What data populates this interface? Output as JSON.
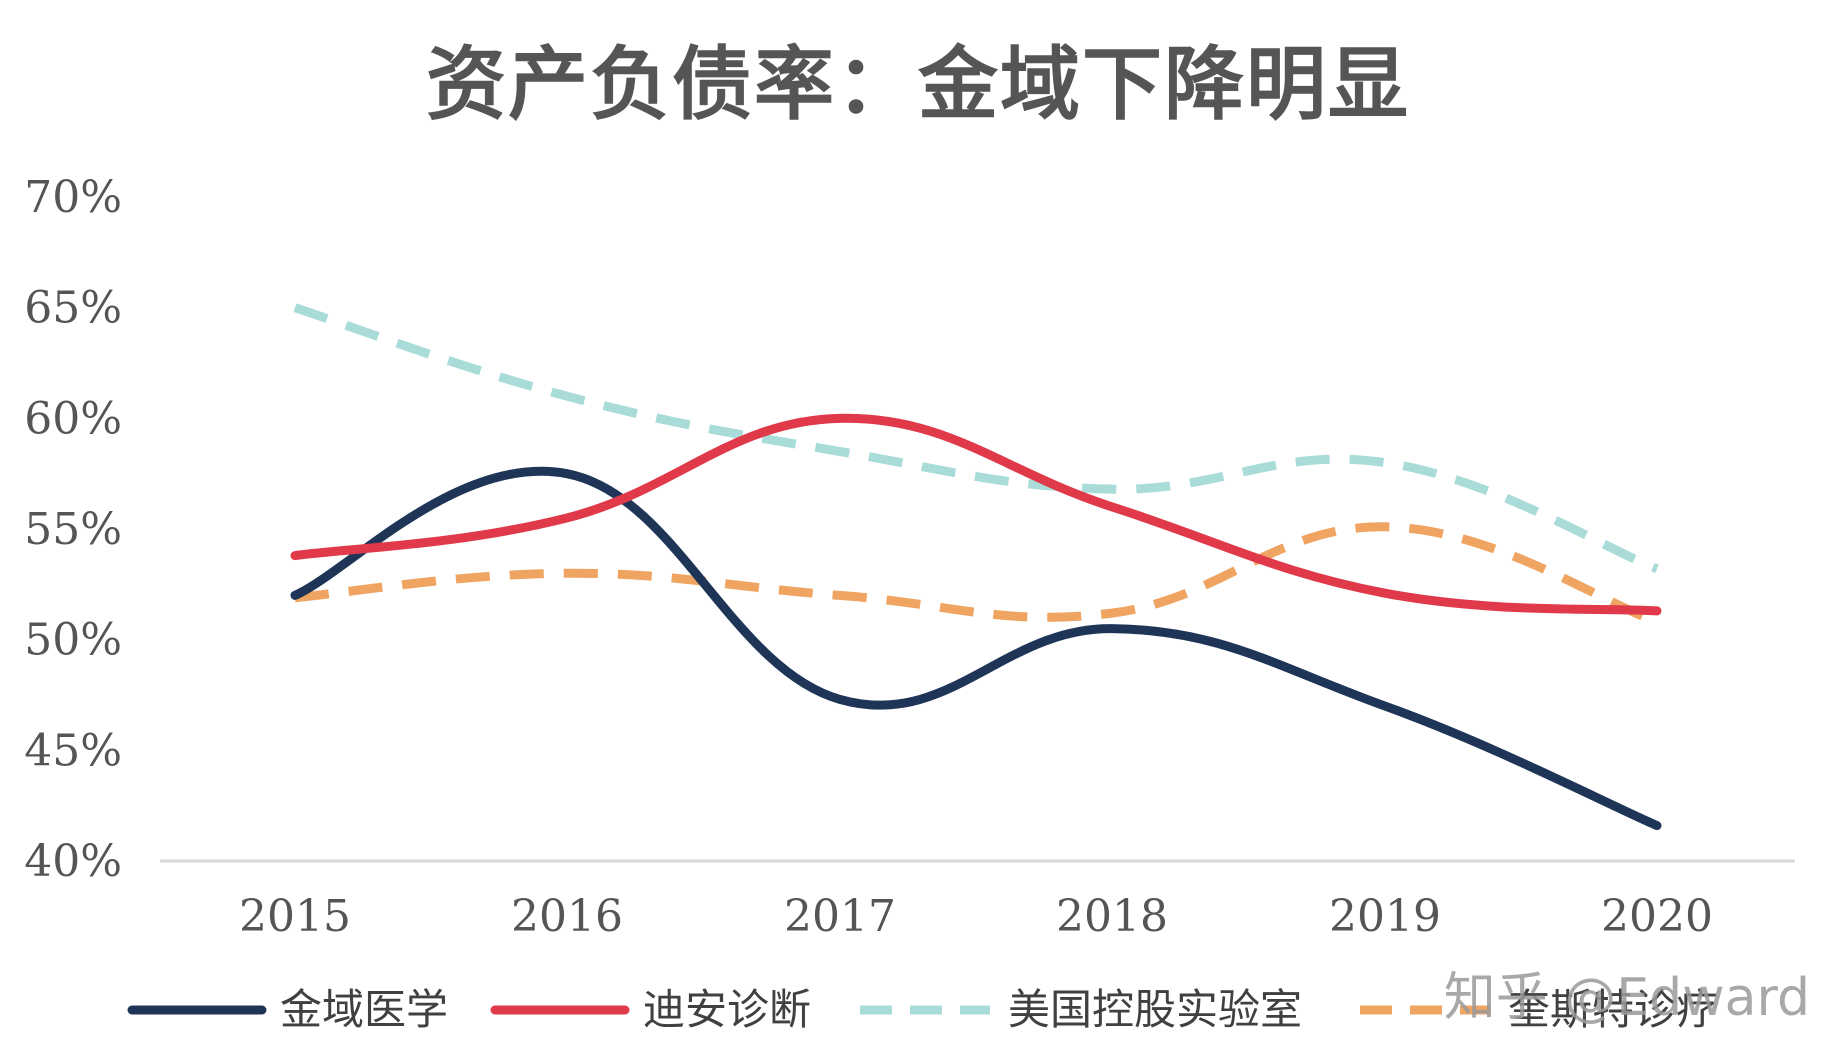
{
  "chart_data": {
    "type": "line",
    "title": "资产负债率：金域下降明显",
    "xlabel": "",
    "ylabel": "",
    "categories": [
      "2015",
      "2016",
      "2017",
      "2018",
      "2019",
      "2020"
    ],
    "ylim": [
      0.4,
      0.7
    ],
    "yticks": [
      0.4,
      0.45,
      0.5,
      0.55,
      0.6,
      0.65,
      0.7
    ],
    "ytick_labels": [
      "40%",
      "45%",
      "50%",
      "55%",
      "60%",
      "65%",
      "70%"
    ],
    "grid": false,
    "legend_position": "bottom",
    "series": [
      {
        "name": "金域医学",
        "values": [
          0.52,
          0.575,
          0.473,
          0.505,
          0.47,
          0.416
        ],
        "color": "#1f3557",
        "dash": "solid"
      },
      {
        "name": "迪安诊断",
        "values": [
          0.538,
          0.555,
          0.6,
          0.56,
          0.521,
          0.513
        ],
        "color": "#e0394a",
        "dash": "solid"
      },
      {
        "name": "美国控股实验室",
        "values": [
          0.65,
          0.61,
          0.585,
          0.568,
          0.58,
          0.532
        ],
        "color": "#a9dcd8",
        "dash": "dashed"
      },
      {
        "name": "奎斯特诊疗",
        "values": [
          0.519,
          0.53,
          0.52,
          0.512,
          0.551,
          0.508
        ],
        "color": "#f0a462",
        "dash": "dashed"
      }
    ]
  },
  "watermark": "知乎 @Edward"
}
